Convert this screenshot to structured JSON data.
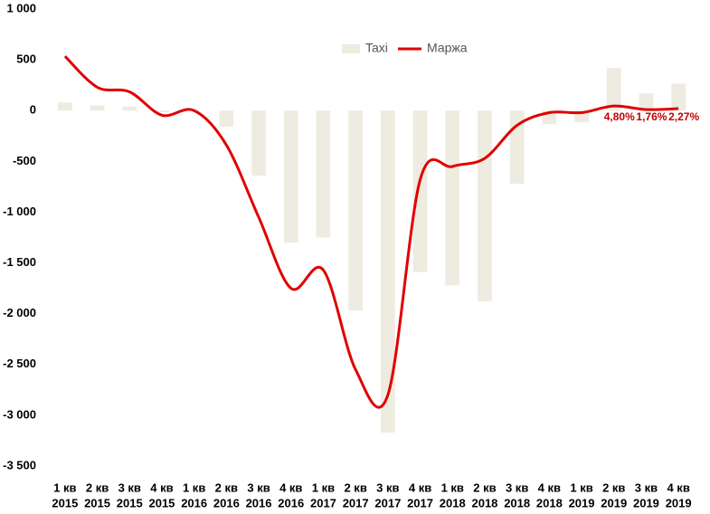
{
  "chart_data": {
    "type": "bar-line",
    "categories": [
      [
        "1 кв",
        "2015"
      ],
      [
        "2 кв",
        "2015"
      ],
      [
        "3 кв",
        "2015"
      ],
      [
        "4 кв",
        "2015"
      ],
      [
        "1 кв",
        "2016"
      ],
      [
        "2 кв",
        "2016"
      ],
      [
        "3 кв",
        "2016"
      ],
      [
        "4 кв",
        "2016"
      ],
      [
        "1 кв",
        "2017"
      ],
      [
        "2 кв",
        "2017"
      ],
      [
        "3 кв",
        "2017"
      ],
      [
        "4 кв",
        "2017"
      ],
      [
        "1 кв",
        "2018"
      ],
      [
        "2 кв",
        "2018"
      ],
      [
        "3 кв",
        "2018"
      ],
      [
        "4 кв",
        "2018"
      ],
      [
        "1 кв",
        "2019"
      ],
      [
        "2 кв",
        "2019"
      ],
      [
        "3 кв",
        "2019"
      ],
      [
        "4 кв",
        "2019"
      ]
    ],
    "series": [
      {
        "name": "Taxi",
        "type": "bar",
        "color": "#eeebe0",
        "values": [
          80,
          50,
          40,
          -15,
          5,
          -160,
          -640,
          -1300,
          -1250,
          -1970,
          -3170,
          -1590,
          -1720,
          -1880,
          -720,
          -135,
          -115,
          420,
          170,
          265
        ]
      },
      {
        "name": "Маржа",
        "type": "line",
        "color": "#e00000",
        "values": [
          535,
          230,
          185,
          -45,
          0,
          -340,
          -1050,
          -1750,
          -1570,
          -2550,
          -2800,
          -680,
          -550,
          -470,
          -145,
          -20,
          -20,
          45,
          10,
          20
        ]
      }
    ],
    "annotations": [
      "4,80%",
      "1,76%",
      "2,27%"
    ],
    "ylim": [
      -3500,
      1000
    ],
    "yticks": [
      {
        "value": -3500,
        "label": "-3 500"
      },
      {
        "value": -3000,
        "label": "-3 000"
      },
      {
        "value": -2500,
        "label": "-2 500"
      },
      {
        "value": -2000,
        "label": "-2 000"
      },
      {
        "value": -1500,
        "label": "-1 500"
      },
      {
        "value": -1000,
        "label": "-1 000"
      },
      -500,
      0,
      500,
      {
        "value": 1000,
        "label": "1 000"
      }
    ],
    "legend": "top"
  }
}
